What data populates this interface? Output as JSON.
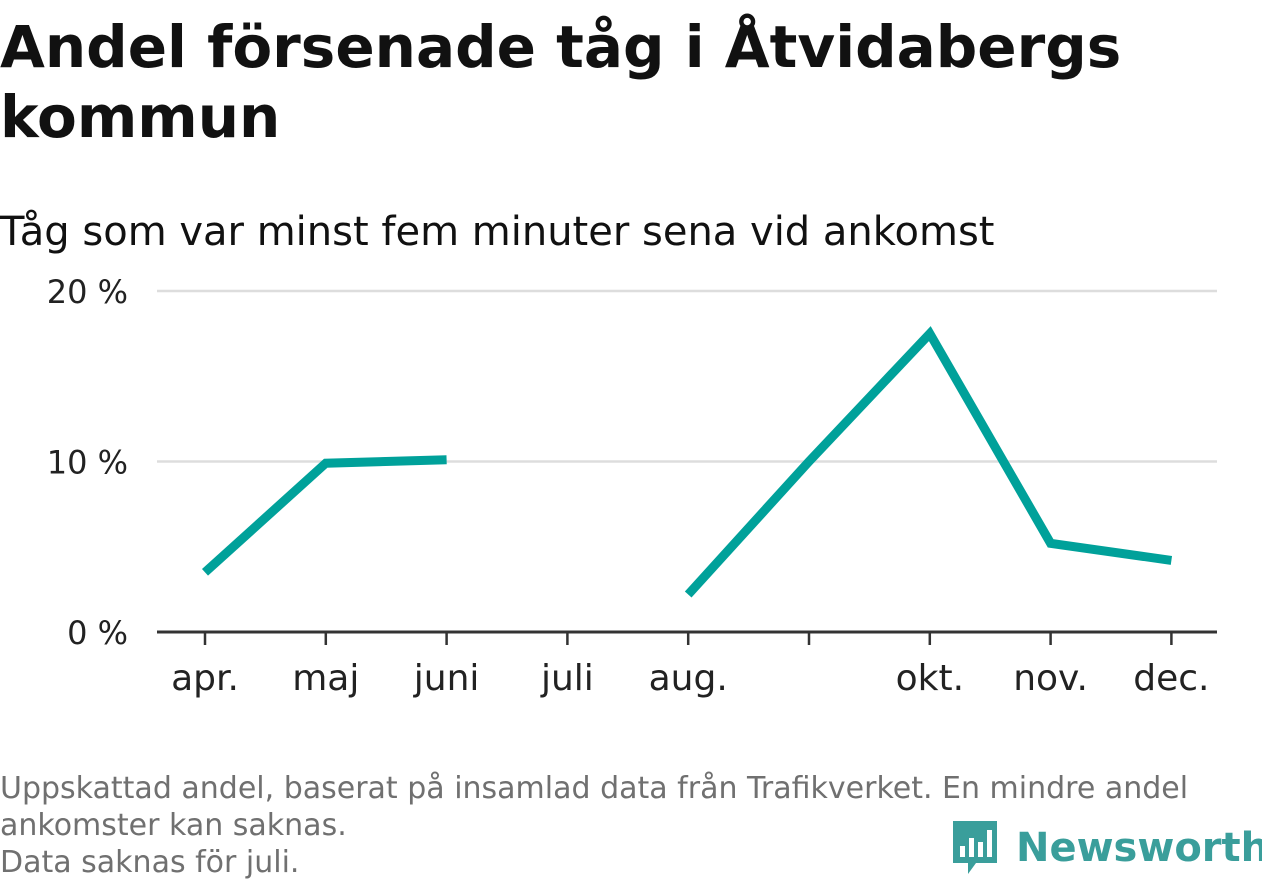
{
  "title": "Andel försenade tåg i Åtvidabergs kommun",
  "subtitle": "Tåg som var minst fem minuter sena vid ankomst",
  "footnote": {
    "line1": "Uppskattad andel, baserat på insamlad data från Trafikverket. En mindre andel",
    "line2": "ankomster kan saknas.",
    "line3": "Data saknas för juli."
  },
  "brand": {
    "name": "Newsworthy",
    "icon": "newsworthy-bar-chart-icon",
    "color": "#3a9e9b"
  },
  "chart_data": {
    "type": "line",
    "color": "#00a19a",
    "ylim": [
      0,
      20
    ],
    "y_ticks": [
      0,
      10,
      20
    ],
    "y_tick_labels": [
      "0 %",
      "10 %",
      "20 %"
    ],
    "grid": true,
    "x_ticks": [
      {
        "month": 4,
        "label": "apr."
      },
      {
        "month": 5,
        "label": "maj"
      },
      {
        "month": 6,
        "label": "juni"
      },
      {
        "month": 7,
        "label": "juli"
      },
      {
        "month": 8,
        "label": "aug."
      },
      {
        "month": 9,
        "label": ""
      },
      {
        "month": 10,
        "label": "okt."
      },
      {
        "month": 11,
        "label": "nov."
      },
      {
        "month": 12,
        "label": "dec."
      }
    ],
    "series": [
      {
        "segments": [
          [
            {
              "month": 4,
              "value": 3.5
            },
            {
              "month": 5,
              "value": 9.9
            },
            {
              "month": 6,
              "value": 10.1
            }
          ],
          [
            {
              "month": 8,
              "value": 2.2
            },
            {
              "month": 9,
              "value": 10.0
            },
            {
              "month": 10,
              "value": 17.5
            },
            {
              "month": 11,
              "value": 5.2
            },
            {
              "month": 12,
              "value": 4.2
            }
          ]
        ]
      }
    ]
  }
}
